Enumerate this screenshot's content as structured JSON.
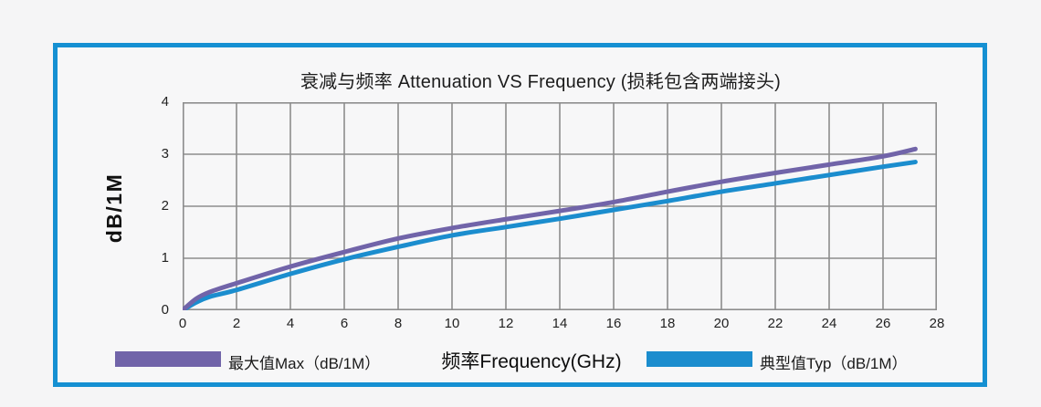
{
  "page": {
    "background_color": "#f5f5f6",
    "frame_border_color": "#1590d2"
  },
  "chart_data": {
    "type": "line",
    "title": "衰减与频率 Attenuation VS Frequency (损耗包含两端接头)",
    "xlabel": "频率Frequency(GHz)",
    "ylabel": "dB/1M",
    "xlim": [
      0,
      28
    ],
    "ylim": [
      0,
      4
    ],
    "x_ticks": [
      0,
      2,
      4,
      6,
      8,
      10,
      12,
      14,
      16,
      18,
      20,
      22,
      24,
      26,
      28
    ],
    "y_ticks": [
      0,
      1,
      2,
      3,
      4
    ],
    "grid": true,
    "legend_position": "bottom",
    "gridline_color": "#8d8d8d",
    "x": [
      0,
      0.5,
      1,
      2,
      4,
      6,
      8,
      10,
      12,
      14,
      16,
      18,
      20,
      22,
      24,
      26,
      27.2
    ],
    "series": [
      {
        "name": "最大值Max（dB/1M）",
        "color": "#7164a9",
        "values": [
          0,
          0.22,
          0.35,
          0.52,
          0.84,
          1.12,
          1.38,
          1.58,
          1.75,
          1.91,
          2.08,
          2.28,
          2.47,
          2.64,
          2.8,
          2.96,
          3.1
        ]
      },
      {
        "name": "典型值Typ（dB/1M）",
        "color": "#1b8dce",
        "values": [
          0,
          0.15,
          0.26,
          0.39,
          0.7,
          0.98,
          1.22,
          1.44,
          1.6,
          1.76,
          1.93,
          2.1,
          2.28,
          2.44,
          2.6,
          2.76,
          2.85
        ]
      }
    ]
  }
}
